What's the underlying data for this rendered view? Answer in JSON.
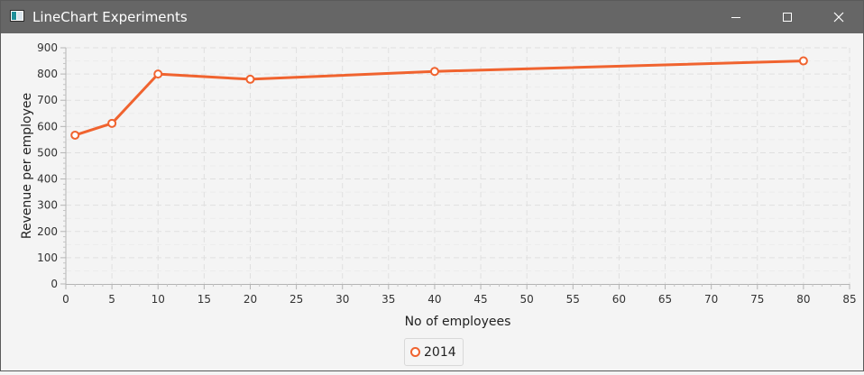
{
  "window": {
    "title": "LineChart Experiments",
    "buttons": {
      "minimize": "minimize",
      "maximize": "maximize",
      "close": "close"
    }
  },
  "colors": {
    "titlebar": "#666666",
    "series": "#f0632f",
    "background": "#f4f4f4",
    "grid": "#e0e0e0"
  },
  "chart_data": {
    "type": "line",
    "xlabel": "No of employees",
    "ylabel": "Revenue per employee",
    "xlim": [
      0,
      85
    ],
    "ylim": [
      0,
      900
    ],
    "x_ticks": [
      0,
      5,
      10,
      15,
      20,
      25,
      30,
      35,
      40,
      45,
      50,
      55,
      60,
      65,
      70,
      75,
      80,
      85
    ],
    "y_ticks": [
      0,
      100,
      200,
      300,
      400,
      500,
      600,
      700,
      800,
      900
    ],
    "grid": true,
    "legend_position": "bottom",
    "series": [
      {
        "name": "2014",
        "points": [
          {
            "x": 1,
            "y": 567
          },
          {
            "x": 5,
            "y": 612
          },
          {
            "x": 10,
            "y": 800
          },
          {
            "x": 20,
            "y": 780
          },
          {
            "x": 40,
            "y": 810
          },
          {
            "x": 80,
            "y": 850
          }
        ]
      }
    ]
  }
}
